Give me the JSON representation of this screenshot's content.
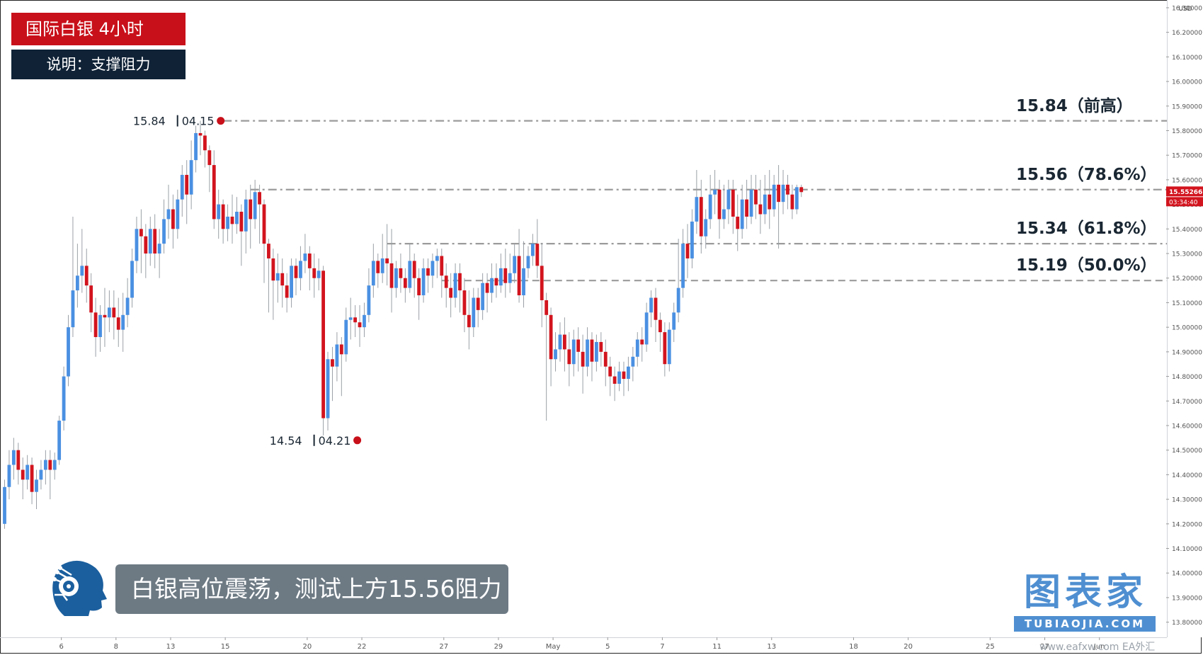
{
  "header": {
    "title": "国际白银  4小时",
    "subtitle": "说明：支撑阻力"
  },
  "caption": "白银高位震荡，测试上方15.56阻力",
  "brand": {
    "cn": "图表家",
    "en": "TUBIAOJIA.COM"
  },
  "watermark": "www.eafxw.com   EA外汇",
  "colors": {
    "up": "#4a90e2",
    "down": "#d2141e",
    "level_line": "#9b9b9b",
    "tag_red": "#c8101a",
    "tag_navy": "#0f2236",
    "caption_bg": "#6d7a84",
    "brand": "#4f8fd1"
  },
  "chart_data": {
    "type": "candlestick",
    "timeframe": "4H",
    "currency": "USD",
    "ylim": [
      13.75,
      16.32
    ],
    "y_ticks": [
      "16.30000",
      "16.20000",
      "16.10000",
      "16.00000",
      "15.90000",
      "15.80000",
      "15.70000",
      "15.60000",
      "15.50000",
      "15.40000",
      "15.30000",
      "15.20000",
      "15.10000",
      "15.00000",
      "14.90000",
      "14.80000",
      "14.70000",
      "14.60000",
      "14.50000",
      "14.40000",
      "14.30000",
      "14.20000",
      "14.10000",
      "14.00000",
      "13.90000",
      "13.80000"
    ],
    "x_ticks": [
      {
        "label": "6",
        "bar": 12
      },
      {
        "label": "8",
        "bar": 24
      },
      {
        "label": "13",
        "bar": 36
      },
      {
        "label": "15",
        "bar": 48
      },
      {
        "label": "20",
        "bar": 66
      },
      {
        "label": "22",
        "bar": 78
      },
      {
        "label": "27",
        "bar": 96
      },
      {
        "label": "29",
        "bar": 108
      },
      {
        "label": "May",
        "bar": 120
      },
      {
        "label": "5",
        "bar": 132
      },
      {
        "label": "7",
        "bar": 144
      },
      {
        "label": "11",
        "bar": 156
      },
      {
        "label": "13",
        "bar": 168
      },
      {
        "label": "18",
        "bar": 186
      },
      {
        "label": "20",
        "bar": 198
      },
      {
        "label": "25",
        "bar": 216
      },
      {
        "label": "27",
        "bar": 228
      },
      {
        "label": "Jun",
        "bar": 240
      }
    ],
    "current_price": "15.55266",
    "countdown": "03:34:40",
    "levels": [
      {
        "price": 15.84,
        "label": "15.84（前高）",
        "style": "dash-dot"
      },
      {
        "price": 15.56,
        "label": "15.56（78.6%）",
        "style": "dash-dot"
      },
      {
        "price": 15.34,
        "label": "15.34（61.8%）",
        "style": "dash-dot"
      },
      {
        "price": 15.19,
        "label": "15.19（50.0%）",
        "style": "dashed"
      }
    ],
    "markers": [
      {
        "price_label": "15.84",
        "date_label": "04.15",
        "price": 15.84,
        "bar": 47
      },
      {
        "price_label": "14.54",
        "date_label": "04.21",
        "price": 14.54,
        "bar": 77
      }
    ],
    "candles": [
      [
        14.2,
        14.35,
        14.18,
        14.38
      ],
      [
        14.35,
        14.44,
        14.3,
        14.5
      ],
      [
        14.44,
        14.5,
        14.38,
        14.55
      ],
      [
        14.5,
        14.42,
        14.36,
        14.53
      ],
      [
        14.42,
        14.38,
        14.3,
        14.47
      ],
      [
        14.38,
        14.44,
        14.34,
        14.48
      ],
      [
        14.44,
        14.33,
        14.28,
        14.47
      ],
      [
        14.33,
        14.38,
        14.26,
        14.42
      ],
      [
        14.38,
        14.42,
        14.34,
        14.46
      ],
      [
        14.42,
        14.46,
        14.36,
        14.5
      ],
      [
        14.46,
        14.42,
        14.3,
        14.5
      ],
      [
        14.42,
        14.46,
        14.38,
        14.49
      ],
      [
        14.46,
        14.62,
        14.44,
        14.64
      ],
      [
        14.62,
        14.8,
        14.58,
        14.84
      ],
      [
        14.8,
        15.0,
        14.76,
        15.05
      ],
      [
        15.0,
        15.15,
        14.96,
        15.45
      ],
      [
        15.15,
        15.21,
        15.08,
        15.34
      ],
      [
        15.21,
        15.25,
        15.14,
        15.4
      ],
      [
        15.25,
        15.17,
        15.1,
        15.32
      ],
      [
        15.17,
        15.06,
        14.98,
        15.22
      ],
      [
        15.06,
        14.96,
        14.88,
        15.12
      ],
      [
        14.96,
        15.05,
        14.9,
        15.09
      ],
      [
        15.05,
        15.04,
        14.92,
        15.16
      ],
      [
        15.04,
        15.08,
        14.98,
        15.15
      ],
      [
        15.08,
        15.04,
        14.95,
        15.15
      ],
      [
        15.04,
        14.99,
        14.92,
        15.12
      ],
      [
        14.99,
        15.05,
        14.9,
        15.14
      ],
      [
        15.05,
        15.12,
        15.0,
        15.2
      ],
      [
        15.12,
        15.27,
        15.08,
        15.32
      ],
      [
        15.27,
        15.4,
        15.22,
        15.45
      ],
      [
        15.4,
        15.37,
        15.22,
        15.48
      ],
      [
        15.37,
        15.3,
        15.2,
        15.42
      ],
      [
        15.3,
        15.4,
        15.25,
        15.45
      ],
      [
        15.4,
        15.3,
        15.24,
        15.46
      ],
      [
        15.3,
        15.34,
        15.2,
        15.4
      ],
      [
        15.34,
        15.44,
        15.3,
        15.52
      ],
      [
        15.44,
        15.48,
        15.36,
        15.58
      ],
      [
        15.48,
        15.4,
        15.32,
        15.54
      ],
      [
        15.4,
        15.52,
        15.36,
        15.56
      ],
      [
        15.52,
        15.62,
        15.45,
        15.66
      ],
      [
        15.62,
        15.54,
        15.42,
        15.68
      ],
      [
        15.54,
        15.68,
        15.48,
        15.76
      ],
      [
        15.68,
        15.79,
        15.63,
        15.82
      ],
      [
        15.79,
        15.78,
        15.7,
        15.84
      ],
      [
        15.78,
        15.72,
        15.65,
        15.8
      ],
      [
        15.72,
        15.66,
        15.55,
        15.74
      ],
      [
        15.66,
        15.44,
        15.4,
        15.72
      ],
      [
        15.44,
        15.5,
        15.36,
        15.56
      ],
      [
        15.5,
        15.4,
        15.34,
        15.52
      ],
      [
        15.4,
        15.45,
        15.35,
        15.5
      ],
      [
        15.45,
        15.42,
        15.34,
        15.54
      ],
      [
        15.42,
        15.47,
        15.38,
        15.53
      ],
      [
        15.47,
        15.39,
        15.25,
        15.5
      ],
      [
        15.39,
        15.52,
        15.3,
        15.56
      ],
      [
        15.52,
        15.44,
        15.32,
        15.58
      ],
      [
        15.44,
        15.55,
        15.4,
        15.6
      ],
      [
        15.55,
        15.5,
        15.34,
        15.58
      ],
      [
        15.5,
        15.34,
        15.18,
        15.52
      ],
      [
        15.34,
        15.28,
        15.06,
        15.36
      ],
      [
        15.28,
        15.19,
        15.03,
        15.32
      ],
      [
        15.19,
        15.22,
        15.1,
        15.3
      ],
      [
        15.22,
        15.17,
        15.08,
        15.28
      ],
      [
        15.17,
        15.12,
        15.06,
        15.22
      ],
      [
        15.12,
        15.25,
        15.08,
        15.28
      ],
      [
        15.25,
        15.2,
        15.13,
        15.28
      ],
      [
        15.2,
        15.27,
        15.15,
        15.33
      ],
      [
        15.27,
        15.3,
        15.22,
        15.38
      ],
      [
        15.3,
        15.24,
        15.15,
        15.33
      ],
      [
        15.24,
        15.2,
        15.12,
        15.3
      ],
      [
        15.2,
        15.23,
        15.15,
        15.28
      ],
      [
        15.23,
        14.63,
        14.56,
        15.25
      ],
      [
        14.63,
        14.87,
        14.58,
        14.9
      ],
      [
        14.87,
        14.84,
        14.7,
        14.92
      ],
      [
        14.84,
        14.93,
        14.78,
        14.98
      ],
      [
        14.93,
        14.89,
        14.72,
        14.96
      ],
      [
        14.89,
        15.03,
        14.86,
        15.08
      ],
      [
        15.03,
        15.04,
        14.95,
        15.12
      ],
      [
        15.04,
        15.02,
        14.96,
        15.09
      ],
      [
        15.02,
        15.0,
        14.92,
        15.09
      ],
      [
        15.0,
        15.05,
        14.96,
        15.1
      ],
      [
        15.05,
        15.17,
        15.02,
        15.24
      ],
      [
        15.17,
        15.27,
        15.12,
        15.34
      ],
      [
        15.27,
        15.22,
        15.16,
        15.3
      ],
      [
        15.22,
        15.28,
        15.18,
        15.38
      ],
      [
        15.28,
        15.26,
        15.17,
        15.42
      ],
      [
        15.26,
        15.16,
        15.06,
        15.4
      ],
      [
        15.16,
        15.24,
        15.12,
        15.27
      ],
      [
        15.24,
        15.2,
        15.14,
        15.3
      ],
      [
        15.2,
        15.16,
        15.1,
        15.24
      ],
      [
        15.16,
        15.27,
        15.14,
        15.34
      ],
      [
        15.27,
        15.2,
        15.12,
        15.3
      ],
      [
        15.2,
        15.13,
        15.03,
        15.24
      ],
      [
        15.13,
        15.24,
        15.1,
        15.28
      ],
      [
        15.24,
        15.21,
        15.14,
        15.28
      ],
      [
        15.21,
        15.27,
        15.16,
        15.3
      ],
      [
        15.27,
        15.29,
        15.2,
        15.32
      ],
      [
        15.29,
        15.21,
        15.12,
        15.32
      ],
      [
        15.21,
        15.16,
        15.08,
        15.26
      ],
      [
        15.16,
        15.12,
        15.04,
        15.22
      ],
      [
        15.12,
        15.22,
        15.08,
        15.26
      ],
      [
        15.22,
        15.15,
        15.06,
        15.26
      ],
      [
        15.15,
        15.05,
        14.98,
        15.2
      ],
      [
        15.05,
        15.0,
        14.91,
        15.15
      ],
      [
        15.0,
        15.12,
        14.96,
        15.16
      ],
      [
        15.12,
        15.07,
        15.0,
        15.16
      ],
      [
        15.07,
        15.18,
        15.03,
        15.22
      ],
      [
        15.18,
        15.14,
        15.06,
        15.22
      ],
      [
        15.14,
        15.2,
        15.1,
        15.26
      ],
      [
        15.2,
        15.17,
        15.12,
        15.26
      ],
      [
        15.17,
        15.24,
        15.14,
        15.3
      ],
      [
        15.24,
        15.18,
        15.12,
        15.32
      ],
      [
        15.18,
        15.22,
        15.14,
        15.3
      ],
      [
        15.22,
        15.29,
        15.18,
        15.34
      ],
      [
        15.29,
        15.13,
        15.1,
        15.4
      ],
      [
        15.13,
        15.24,
        15.08,
        15.35
      ],
      [
        15.24,
        15.29,
        15.2,
        15.33
      ],
      [
        15.29,
        15.34,
        15.25,
        15.38
      ],
      [
        15.34,
        15.25,
        15.2,
        15.44
      ],
      [
        15.25,
        15.11,
        15.0,
        15.34
      ],
      [
        15.11,
        15.05,
        14.62,
        15.14
      ],
      [
        15.05,
        14.87,
        14.76,
        15.08
      ],
      [
        14.87,
        14.91,
        14.82,
        14.98
      ],
      [
        14.91,
        14.97,
        14.86,
        15.02
      ],
      [
        14.97,
        14.91,
        14.82,
        15.04
      ],
      [
        14.91,
        14.85,
        14.76,
        14.98
      ],
      [
        14.85,
        14.95,
        14.8,
        14.99
      ],
      [
        14.95,
        14.9,
        14.82,
        15.0
      ],
      [
        14.9,
        14.84,
        14.73,
        14.97
      ],
      [
        14.84,
        14.95,
        14.8,
        15.0
      ],
      [
        14.95,
        14.86,
        14.78,
        14.98
      ],
      [
        14.86,
        14.94,
        14.82,
        14.97
      ],
      [
        14.94,
        14.9,
        14.84,
        14.98
      ],
      [
        14.9,
        14.84,
        14.76,
        14.95
      ],
      [
        14.84,
        14.8,
        14.72,
        14.88
      ],
      [
        14.8,
        14.77,
        14.7,
        14.84
      ],
      [
        14.77,
        14.82,
        14.74,
        14.86
      ],
      [
        14.82,
        14.79,
        14.72,
        14.86
      ],
      [
        14.79,
        14.84,
        14.74,
        14.88
      ],
      [
        14.84,
        14.88,
        14.78,
        14.92
      ],
      [
        14.88,
        14.95,
        14.84,
        14.98
      ],
      [
        14.95,
        14.93,
        14.86,
        15.0
      ],
      [
        14.93,
        15.06,
        14.9,
        15.1
      ],
      [
        15.06,
        15.12,
        15.0,
        15.15
      ],
      [
        15.12,
        15.03,
        14.94,
        15.16
      ],
      [
        15.03,
        14.98,
        14.9,
        15.06
      ],
      [
        14.98,
        14.85,
        14.8,
        15.02
      ],
      [
        14.85,
        14.99,
        14.82,
        15.02
      ],
      [
        14.99,
        15.06,
        14.94,
        15.1
      ],
      [
        15.06,
        15.16,
        15.02,
        15.36
      ],
      [
        15.16,
        15.34,
        15.12,
        15.4
      ],
      [
        15.34,
        15.28,
        15.2,
        15.42
      ],
      [
        15.28,
        15.43,
        15.24,
        15.48
      ],
      [
        15.43,
        15.53,
        15.38,
        15.64
      ],
      [
        15.53,
        15.37,
        15.3,
        15.6
      ],
      [
        15.37,
        15.44,
        15.32,
        15.48
      ],
      [
        15.44,
        15.54,
        15.4,
        15.62
      ],
      [
        15.54,
        15.56,
        15.46,
        15.64
      ],
      [
        15.56,
        15.44,
        15.36,
        15.6
      ],
      [
        15.44,
        15.48,
        15.4,
        15.58
      ],
      [
        15.48,
        15.56,
        15.42,
        15.6
      ],
      [
        15.56,
        15.45,
        15.38,
        15.6
      ],
      [
        15.45,
        15.4,
        15.31,
        15.54
      ],
      [
        15.4,
        15.52,
        15.36,
        15.58
      ],
      [
        15.52,
        15.45,
        15.4,
        15.6
      ],
      [
        15.45,
        15.56,
        15.42,
        15.62
      ],
      [
        15.56,
        15.5,
        15.44,
        15.62
      ],
      [
        15.5,
        15.46,
        15.38,
        15.6
      ],
      [
        15.46,
        15.54,
        15.42,
        15.62
      ],
      [
        15.54,
        15.48,
        15.4,
        15.64
      ],
      [
        15.48,
        15.58,
        15.45,
        15.62
      ],
      [
        15.58,
        15.51,
        15.32,
        15.66
      ],
      [
        15.51,
        15.58,
        15.46,
        15.64
      ],
      [
        15.58,
        15.54,
        15.48,
        15.62
      ],
      [
        15.54,
        15.48,
        15.44,
        15.58
      ],
      [
        15.48,
        15.57,
        15.46,
        15.58
      ],
      [
        15.57,
        15.55,
        15.53,
        15.58
      ]
    ]
  },
  "axis": {
    "currency_label": "USD",
    "price_badge": "15.55266",
    "countdown_badge": "03:34:40"
  }
}
